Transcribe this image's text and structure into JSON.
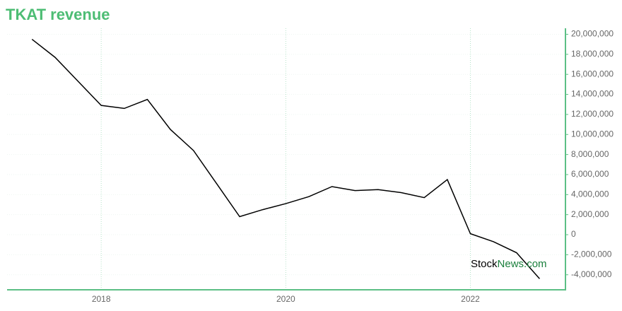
{
  "chart_data": {
    "type": "line",
    "title": "TKAT revenue",
    "x": [
      2017.25,
      2017.5,
      2017.75,
      2018,
      2018.25,
      2018.5,
      2018.75,
      2019,
      2019.25,
      2019.5,
      2019.75,
      2020,
      2020.25,
      2020.5,
      2020.75,
      2021,
      2021.25,
      2021.5,
      2021.75,
      2022,
      2022.25,
      2022.5,
      2022.75
    ],
    "series": [
      {
        "color": "#000000",
        "values": [
          19500000,
          17700000,
          15300000,
          12900000,
          12600000,
          13500000,
          10500000,
          8400000,
          5100000,
          1800000,
          2500000,
          3100000,
          3800000,
          4800000,
          4400000,
          4500000,
          4200000,
          3700000,
          5500000,
          100000,
          -700000,
          -1800000,
          -4400000
        ]
      }
    ],
    "xlim": [
      2016.98,
      2023.03
    ],
    "xticks": [
      2018,
      2020,
      2022
    ],
    "ylim": [
      -5500000,
      20600000
    ],
    "yticks": [
      {
        "value": -4000000,
        "label": "-4,000,000"
      },
      {
        "value": -2000000,
        "label": "-2,000,000"
      },
      0,
      {
        "value": 2000000,
        "label": "2,000,000"
      },
      {
        "value": 4000000,
        "label": "4,000,000"
      },
      {
        "value": 6000000,
        "label": "6,000,000"
      },
      {
        "value": 8000000,
        "label": "8,000,000"
      },
      {
        "value": 10000000,
        "label": "10,000,000"
      },
      {
        "value": 12000000,
        "label": "12,000,000"
      },
      {
        "value": 14000000,
        "label": "14,000,000"
      },
      {
        "value": 16000000,
        "label": "16,000,000"
      },
      {
        "value": 18000000,
        "label": "18,000,000"
      },
      {
        "value": 20000000,
        "label": "20,000,000"
      }
    ],
    "grid": true,
    "axis_color": "#5cbf85"
  },
  "watermark": {
    "brand": "Stock",
    "suffix": "News.com"
  }
}
